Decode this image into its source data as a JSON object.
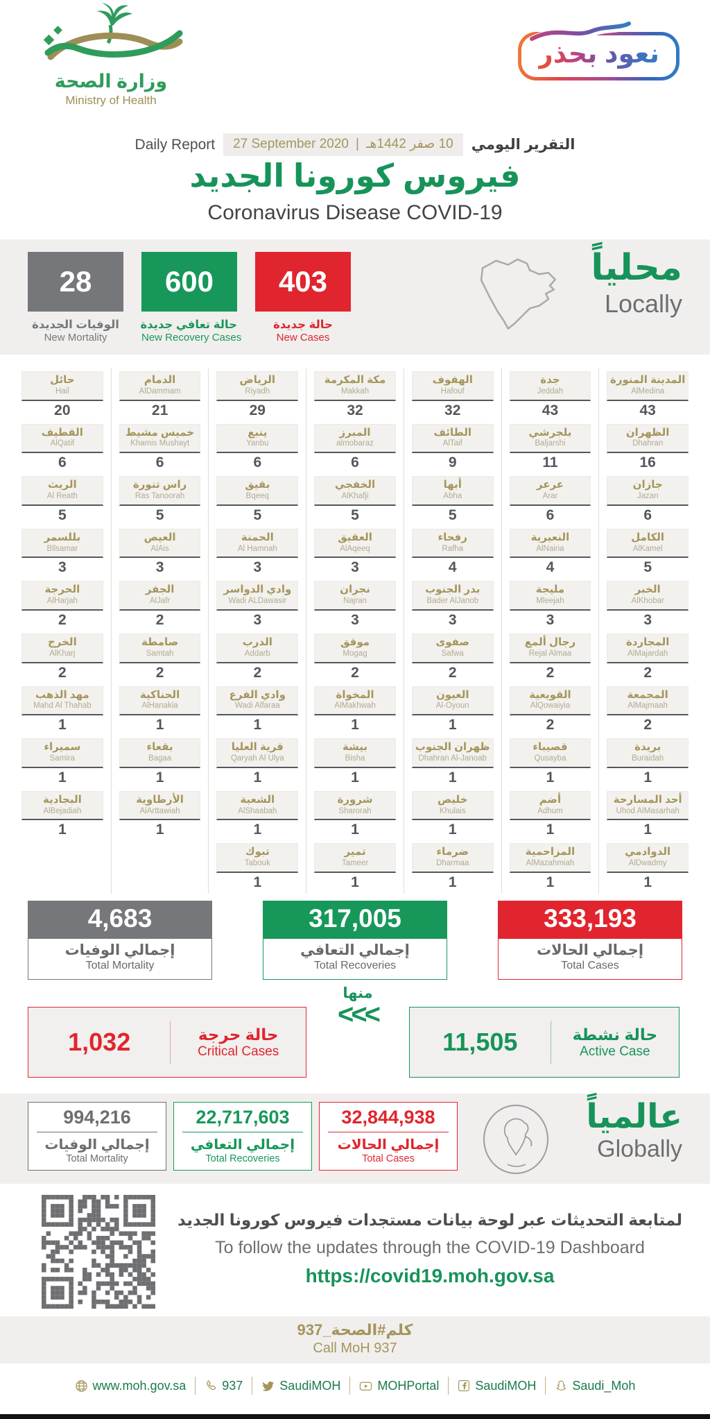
{
  "header": {
    "ministry_ar": "وزارة الصحة",
    "ministry_en": "Ministry of Health",
    "badge_ar": "نعود بحذر",
    "report_label_en": "Daily Report",
    "report_label_ar": "التقرير اليومي",
    "date_en": "27 September 2020",
    "date_sep": "|",
    "date_hijri": "10 صفر 1442هـ",
    "title_ar": "فيروس كورونا الجديد",
    "title_en": "Coronavirus Disease COVID-19"
  },
  "locally": {
    "label_ar": "محلياً",
    "label_en": "Locally",
    "stats": [
      {
        "value": "28",
        "ar": "الوفيات الجديدة",
        "en": "New Mortality",
        "color": "#76777a"
      },
      {
        "value": "600",
        "ar": "حالة تعافي جديدة",
        "en": "New Recovery Cases",
        "color": "#17985a"
      },
      {
        "value": "403",
        "ar": "حالة جديدة",
        "en": "New Cases",
        "color": "#e0252e"
      }
    ]
  },
  "cities": {
    "columns": [
      [
        {
          "ar": "حائل",
          "en": "Hail",
          "n": "20"
        },
        {
          "ar": "القطيف",
          "en": "AlQatif",
          "n": "6"
        },
        {
          "ar": "الريث",
          "en": "Al Reath",
          "n": "5"
        },
        {
          "ar": "بللسمر",
          "en": "Bllsamar",
          "n": "3"
        },
        {
          "ar": "الحرجة",
          "en": "AlHarjah",
          "n": "2"
        },
        {
          "ar": "الخرج",
          "en": "AlKharj",
          "n": "2"
        },
        {
          "ar": "مهد الذهب",
          "en": "Mahd Al Thahab",
          "n": "1"
        },
        {
          "ar": "سميراء",
          "en": "Samira",
          "n": "1"
        },
        {
          "ar": "البجادية",
          "en": "AlBejadiah",
          "n": "1"
        }
      ],
      [
        {
          "ar": "الدمام",
          "en": "AlDammam",
          "n": "21"
        },
        {
          "ar": "خميس مشيط",
          "en": "Khamis Mushayt",
          "n": "6"
        },
        {
          "ar": "راس تنورة",
          "en": "Ras Tanoorah",
          "n": "5"
        },
        {
          "ar": "العيص",
          "en": "AlAis",
          "n": "3"
        },
        {
          "ar": "الجفر",
          "en": "AlJafr",
          "n": "2"
        },
        {
          "ar": "صامطة",
          "en": "Samtah",
          "n": "2"
        },
        {
          "ar": "الحناكية",
          "en": "AlHanakia",
          "n": "1"
        },
        {
          "ar": "بقعاء",
          "en": "Bagaa",
          "n": "1"
        },
        {
          "ar": "الأرطاوية",
          "en": "AlArttawiah",
          "n": "1"
        }
      ],
      [
        {
          "ar": "الرياض",
          "en": "Riyadh",
          "n": "29"
        },
        {
          "ar": "ينبع",
          "en": "Yanbu",
          "n": "6"
        },
        {
          "ar": "بقيق",
          "en": "Bqeeq",
          "n": "5"
        },
        {
          "ar": "الحمنة",
          "en": "Al Hamnah",
          "n": "3"
        },
        {
          "ar": "وادي الدواسر",
          "en": "Wadi ALDawasir",
          "n": "3"
        },
        {
          "ar": "الدرب",
          "en": "Addarb",
          "n": "2"
        },
        {
          "ar": "وادي الفرع",
          "en": "Wadi Alfaraa",
          "n": "1"
        },
        {
          "ar": "قرية العليا",
          "en": "Qaryah Al Ulya",
          "n": "1"
        },
        {
          "ar": "الشعبة",
          "en": "AlShaabah",
          "n": "1"
        },
        {
          "ar": "تبوك",
          "en": "Tabouk",
          "n": "1"
        }
      ],
      [
        {
          "ar": "مكة المكرمة",
          "en": "Makkah",
          "n": "32"
        },
        {
          "ar": "المبرز",
          "en": "almobaraz",
          "n": "6"
        },
        {
          "ar": "الخفجي",
          "en": "AlKhafji",
          "n": "5"
        },
        {
          "ar": "العقيق",
          "en": "AlAqeeq",
          "n": "3"
        },
        {
          "ar": "نجران",
          "en": "Najran",
          "n": "3"
        },
        {
          "ar": "موقق",
          "en": "Mogag",
          "n": "2"
        },
        {
          "ar": "المخواة",
          "en": "AlMakhwah",
          "n": "1"
        },
        {
          "ar": "بيشة",
          "en": "Bisha",
          "n": "1"
        },
        {
          "ar": "شرورة",
          "en": "Sharorah",
          "n": "1"
        },
        {
          "ar": "تمير",
          "en": "Tameer",
          "n": "1"
        }
      ],
      [
        {
          "ar": "الهفوف",
          "en": "Hafouf",
          "n": "32"
        },
        {
          "ar": "الطائف",
          "en": "AlTaif",
          "n": "9"
        },
        {
          "ar": "أبها",
          "en": "Abha",
          "n": "5"
        },
        {
          "ar": "رفحاء",
          "en": "Rafha",
          "n": "4"
        },
        {
          "ar": "بدر الجنوب",
          "en": "Bader AlJanob",
          "n": "3"
        },
        {
          "ar": "صفوى",
          "en": "Safwa",
          "n": "2"
        },
        {
          "ar": "العيون",
          "en": "Al-Oyoun",
          "n": "1"
        },
        {
          "ar": "ظهران الجنوب",
          "en": "Dhahran Al-Janoab",
          "n": "1"
        },
        {
          "ar": "خليص",
          "en": "Khulais",
          "n": "1"
        },
        {
          "ar": "ضرماء",
          "en": "Dharmaa",
          "n": "1"
        }
      ],
      [
        {
          "ar": "جدة",
          "en": "Jeddah",
          "n": "43"
        },
        {
          "ar": "بلجرشي",
          "en": "Baljarshi",
          "n": "11"
        },
        {
          "ar": "عرعر",
          "en": "Arar",
          "n": "6"
        },
        {
          "ar": "النعيرية",
          "en": "AlNairia",
          "n": "4"
        },
        {
          "ar": "مليجة",
          "en": "Mleejah",
          "n": "3"
        },
        {
          "ar": "رجال ألمع",
          "en": "Rejal Almaa",
          "n": "2"
        },
        {
          "ar": "القويعية",
          "en": "AlQowaiyia",
          "n": "2"
        },
        {
          "ar": "قصيباء",
          "en": "Qusayba",
          "n": "1"
        },
        {
          "ar": "أضم",
          "en": "Adhum",
          "n": "1"
        },
        {
          "ar": "المزاحمية",
          "en": "AlMazahmiah",
          "n": "1"
        }
      ],
      [
        {
          "ar": "المدينة المنورة",
          "en": "AlMedina",
          "n": "43"
        },
        {
          "ar": "الظهران",
          "en": "Dhahran",
          "n": "16"
        },
        {
          "ar": "جازان",
          "en": "Jazan",
          "n": "6"
        },
        {
          "ar": "الكامل",
          "en": "AlKamel",
          "n": "5"
        },
        {
          "ar": "الخبر",
          "en": "AlKhobar",
          "n": "3"
        },
        {
          "ar": "المجاردة",
          "en": "AlMajardah",
          "n": "2"
        },
        {
          "ar": "المجمعة",
          "en": "AlMajmaah",
          "n": "2"
        },
        {
          "ar": "بريدة",
          "en": "Buraidah",
          "n": "1"
        },
        {
          "ar": "أحد المسارحة",
          "en": "Uhod AlMasarhah",
          "n": "1"
        },
        {
          "ar": "الدوادمي",
          "en": "AlDwadmy",
          "n": "1"
        }
      ]
    ]
  },
  "totals": [
    {
      "value": "4,683",
      "ar": "إجمالي الوفيات",
      "en": "Total Mortality",
      "color": "#76777a"
    },
    {
      "value": "317,005",
      "ar": "إجمالي التعافي",
      "en": "Total Recoveries",
      "color": "#17985a"
    },
    {
      "value": "333,193",
      "ar": "إجمالي الحالات",
      "en": "Total Cases",
      "color": "#e0252e"
    }
  ],
  "active_row": {
    "critical": {
      "value": "1,032",
      "ar": "حالة حرجة",
      "en": "Critical Cases",
      "color": "#e0252e"
    },
    "of_which": "منها",
    "arrows": "<<<",
    "active": {
      "value": "11,505",
      "ar": "حالة نشطة",
      "en": "Active Case",
      "color": "#17935a"
    }
  },
  "globally": {
    "label_ar": "عالمياً",
    "label_en": "Globally",
    "stats": [
      {
        "value": "994,216",
        "ar": "إجمالي الوفيات",
        "en": "Total Mortality",
        "color": "#6d6e71"
      },
      {
        "value": "22,717,603",
        "ar": "إجمالي التعافي",
        "en": "Total Recoveries",
        "color": "#17985a"
      },
      {
        "value": "32,844,938",
        "ar": "إجمالي الحالات",
        "en": "Total Cases",
        "color": "#e0252e"
      }
    ]
  },
  "dashboard": {
    "ar": "لمتابعة التحديثات عبر لوحة بيانات مستجدات فيروس كورونا الجديد",
    "en": "To follow the updates through the COVID-19 Dashboard",
    "url": "https://covid19.moh.gov.sa"
  },
  "call_bar": {
    "ar": "كلم#الصحة_937",
    "en": "Call MoH 937"
  },
  "footer_links": [
    {
      "icon": "globe-icon",
      "label": "www.moh.gov.sa"
    },
    {
      "icon": "phone-icon",
      "label": "937"
    },
    {
      "icon": "twitter-icon",
      "label": "SaudiMOH"
    },
    {
      "icon": "youtube-icon",
      "label": "MOHPortal"
    },
    {
      "icon": "facebook-icon",
      "label": "SaudiMOH"
    },
    {
      "icon": "snapchat-icon",
      "label": "Saudi_Moh"
    }
  ]
}
